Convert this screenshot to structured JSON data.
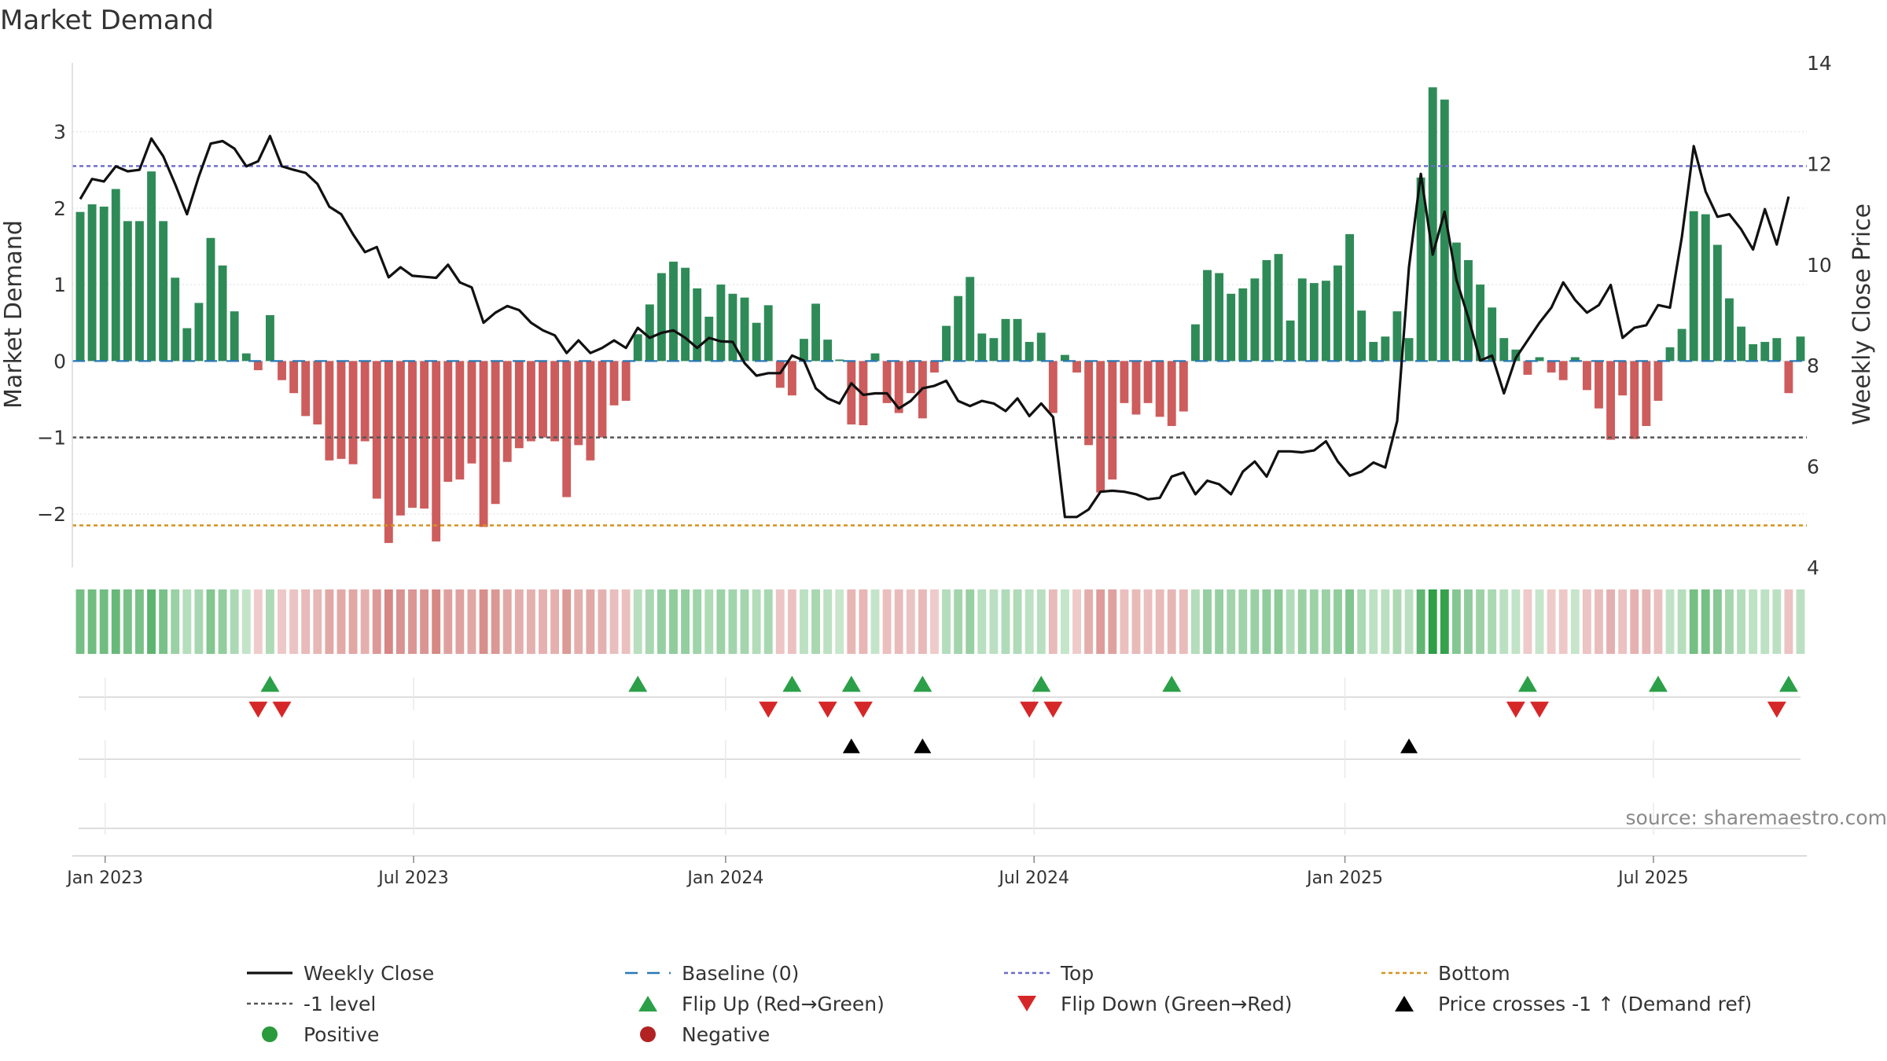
{
  "chart_data": {
    "type": "bar",
    "title": "Market Demand",
    "ylabel_left": "Market Demand",
    "ylabel_right": "Weekly Close Price",
    "left_axis": {
      "range": [
        -2.7,
        3.9
      ],
      "ticks": [
        -2,
        -1,
        0,
        1,
        2,
        3
      ],
      "tick_labels": [
        "−2",
        "−1",
        "0",
        "1",
        "2",
        "3"
      ]
    },
    "right_axis": {
      "range": [
        4,
        14
      ],
      "ticks": [
        4,
        6,
        8,
        10,
        12,
        14
      ],
      "tick_labels": [
        "4",
        "6",
        "8",
        "10",
        "12",
        "14"
      ]
    },
    "x_ticks": [
      "Jan 2023",
      "Jul 2023",
      "Jan 2024",
      "Jul 2024",
      "Jan 2025",
      "Jul 2025"
    ],
    "x_tick_weeks": [
      2.1,
      28.1,
      54.4,
      80.4,
      106.6,
      132.6
    ],
    "reference_lines": {
      "top": 2.55,
      "minus_one": -1,
      "bottom": -2.15,
      "baseline": 0
    },
    "demand": [
      1.95,
      2.05,
      2.02,
      2.25,
      1.83,
      1.83,
      2.48,
      1.83,
      1.09,
      0.43,
      0.76,
      1.61,
      1.25,
      0.65,
      0.1,
      -0.12,
      0.6,
      -0.25,
      -0.42,
      -0.72,
      -0.83,
      -1.3,
      -1.28,
      -1.35,
      -1.05,
      -1.8,
      -2.38,
      -2.02,
      -1.92,
      -1.93,
      -2.36,
      -1.58,
      -1.55,
      -1.34,
      -2.17,
      -1.87,
      -1.32,
      -1.14,
      -1.05,
      -1.0,
      -1.05,
      -1.78,
      -1.1,
      -1.3,
      -1.0,
      -0.58,
      -0.52,
      0.35,
      0.74,
      1.15,
      1.3,
      1.22,
      0.95,
      0.58,
      1.0,
      0.88,
      0.83,
      0.5,
      0.73,
      -0.35,
      -0.45,
      0.29,
      0.75,
      0.28,
      0.02,
      -0.83,
      -0.84,
      0.1,
      -0.55,
      -0.68,
      -0.42,
      -0.75,
      -0.15,
      0.46,
      0.85,
      1.1,
      0.36,
      0.3,
      0.55,
      0.55,
      0.25,
      0.37,
      -0.68,
      0.08,
      -0.15,
      -1.1,
      -1.72,
      -1.55,
      -0.55,
      -0.7,
      -0.55,
      -0.73,
      -0.85,
      -0.66,
      0.48,
      1.19,
      1.15,
      0.88,
      0.95,
      1.08,
      1.32,
      1.4,
      0.53,
      1.08,
      1.02,
      1.05,
      1.25,
      1.66,
      0.66,
      0.25,
      0.32,
      0.65,
      0.3,
      2.4,
      3.58,
      3.42,
      1.55,
      1.32,
      1.0,
      0.7,
      0.3,
      0.15,
      -0.18,
      0.05,
      -0.15,
      -0.25,
      0.05,
      -0.38,
      -0.62,
      -1.03,
      -0.45,
      -1.02,
      -0.85,
      -0.52,
      0.18,
      0.42,
      1.96,
      1.92,
      1.52,
      0.82,
      0.45,
      0.22,
      0.25,
      0.3,
      -0.42,
      0.32
    ],
    "weekly_close": [
      11.3,
      11.7,
      11.65,
      11.95,
      11.85,
      11.88,
      12.5,
      12.15,
      11.6,
      11.0,
      11.75,
      12.4,
      12.45,
      12.3,
      11.95,
      12.05,
      12.55,
      11.95,
      11.88,
      11.82,
      11.6,
      11.15,
      11.0,
      10.6,
      10.25,
      10.35,
      9.75,
      9.95,
      9.78,
      9.76,
      9.74,
      10.0,
      9.65,
      9.55,
      8.85,
      9.05,
      9.18,
      9.1,
      8.85,
      8.7,
      8.6,
      8.25,
      8.5,
      8.25,
      8.35,
      8.5,
      8.35,
      8.75,
      8.55,
      8.65,
      8.7,
      8.55,
      8.35,
      8.55,
      8.48,
      8.47,
      8.05,
      7.8,
      7.85,
      7.85,
      8.2,
      8.1,
      7.55,
      7.35,
      7.25,
      7.65,
      7.42,
      7.45,
      7.45,
      7.15,
      7.3,
      7.55,
      7.6,
      7.7,
      7.3,
      7.2,
      7.3,
      7.25,
      7.1,
      7.35,
      7.0,
      7.25,
      6.98,
      5.0,
      5.0,
      5.15,
      5.5,
      5.52,
      5.5,
      5.45,
      5.35,
      5.38,
      5.8,
      5.88,
      5.45,
      5.72,
      5.65,
      5.45,
      5.9,
      6.1,
      5.8,
      6.3,
      6.3,
      6.28,
      6.32,
      6.5,
      6.1,
      5.82,
      5.9,
      6.08,
      5.98,
      6.9,
      9.95,
      11.8,
      10.2,
      11.05,
      9.7,
      8.95,
      8.1,
      8.2,
      7.45,
      8.15,
      8.5,
      8.85,
      9.15,
      9.65,
      9.3,
      9.05,
      9.2,
      9.6,
      8.55,
      8.75,
      8.8,
      9.2,
      9.15,
      10.55,
      12.35,
      11.45,
      10.95,
      11.0,
      10.7,
      10.3,
      11.1,
      10.4,
      11.35
    ],
    "flip_up_weeks": [
      16,
      47,
      60,
      65,
      71,
      81,
      92,
      122,
      133,
      144
    ],
    "flip_down_weeks": [
      15,
      17,
      58,
      63,
      66,
      80,
      82,
      121,
      123,
      143
    ],
    "price_cross_weeks": [
      65,
      71,
      112
    ],
    "source": "source: sharemaestro.com",
    "legend": [
      "Weekly Close",
      "Baseline (0)",
      "Top",
      "Bottom",
      "-1 level",
      "Flip Up (Red→Green)",
      "Flip Down (Green→Red)",
      "Price crosses -1 ↑ (Demand ref)",
      "Positive",
      "Negative"
    ]
  },
  "colors": {
    "positive": "#2e8b57",
    "negative": "#cd5c5c",
    "line": "#111111",
    "top": "#6a6acd",
    "bottom": "#d4921e",
    "minus_one": "#555555",
    "baseline": "#2878b5",
    "flip_up": "#2ca048",
    "flip_down": "#d62728",
    "cross": "#000000",
    "positive_dot": "#2a9a3a",
    "negative_dot": "#b22222"
  }
}
